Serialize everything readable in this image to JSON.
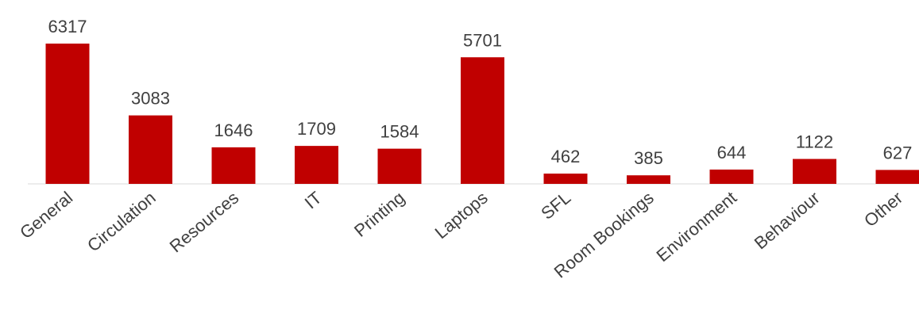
{
  "chart_data": {
    "type": "bar",
    "categories": [
      "General",
      "Circulation",
      "Resources",
      "IT",
      "Printing",
      "Laptops",
      "SFL",
      "Room Bookings",
      "Environment",
      "Behaviour",
      "Other"
    ],
    "values": [
      6317,
      3083,
      1646,
      1709,
      1584,
      5701,
      462,
      385,
      644,
      1122,
      627
    ],
    "color": "#c00000"
  }
}
